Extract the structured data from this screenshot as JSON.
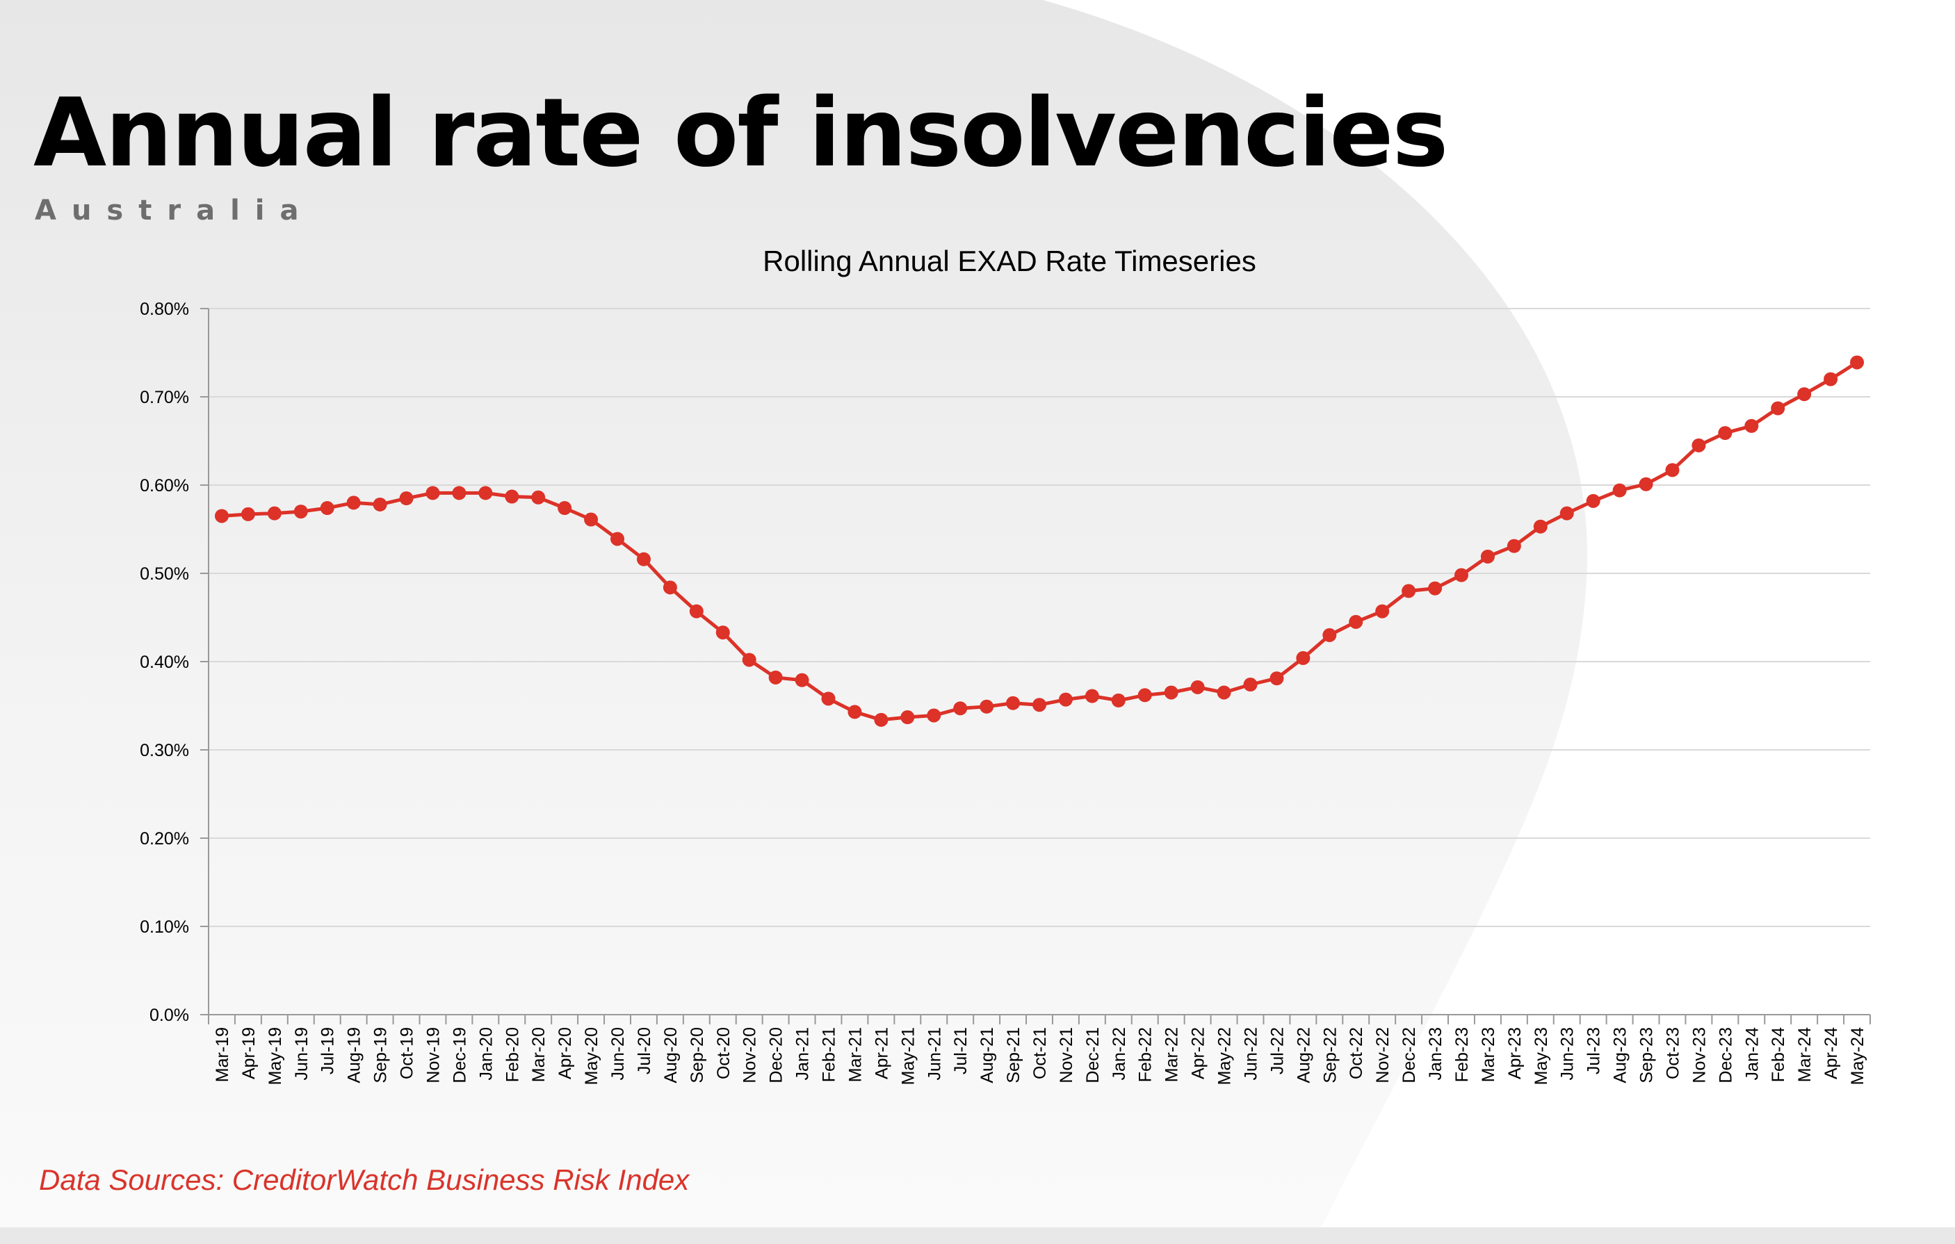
{
  "header": {
    "title": "Annual rate of insolvencies",
    "subtitle": "Australia"
  },
  "footer": {
    "source": "Data Sources: CreditorWatch Business Risk Index"
  },
  "colors": {
    "series": "#dc3228",
    "grid": "#d9d9d9",
    "axis": "#999999",
    "source_text": "#d9342b"
  },
  "chart_data": {
    "type": "line",
    "title": "Rolling Annual EXAD Rate Timeseries",
    "xlabel": "",
    "ylabel": "",
    "ylim": [
      0,
      0.8
    ],
    "y_ticks": [
      "0.0%",
      "0.10%",
      "0.20%",
      "0.30%",
      "0.40%",
      "0.50%",
      "0.60%",
      "0.70%",
      "0.80%"
    ],
    "grid": true,
    "legend": "none",
    "categories": [
      "Mar-19",
      "Apr-19",
      "May-19",
      "Jun-19",
      "Jul-19",
      "Aug-19",
      "Sep-19",
      "Oct-19",
      "Nov-19",
      "Dec-19",
      "Jan-20",
      "Feb-20",
      "Mar-20",
      "Apr-20",
      "May-20",
      "Jun-20",
      "Jul-20",
      "Aug-20",
      "Sep-20",
      "Oct-20",
      "Nov-20",
      "Dec-20",
      "Jan-21",
      "Feb-21",
      "Mar-21",
      "Apr-21",
      "May-21",
      "Jun-21",
      "Jul-21",
      "Aug-21",
      "Sep-21",
      "Oct-21",
      "Nov-21",
      "Dec-21",
      "Jan-22",
      "Feb-22",
      "Mar-22",
      "Apr-22",
      "May-22",
      "Jun-22",
      "Jul-22",
      "Aug-22",
      "Sep-22",
      "Oct-22",
      "Nov-22",
      "Dec-22",
      "Jan-23",
      "Feb-23",
      "Mar-23",
      "Apr-23",
      "May-23",
      "Jun-23",
      "Jul-23",
      "Aug-23",
      "Sep-23",
      "Oct-23",
      "Nov-23",
      "Dec-23",
      "Jan-24",
      "Feb-24",
      "Mar-24",
      "Apr-24",
      "May-24"
    ],
    "series": [
      {
        "values": [
          0.565,
          0.567,
          0.568,
          0.57,
          0.574,
          0.58,
          0.578,
          0.585,
          0.591,
          0.591,
          0.591,
          0.587,
          0.586,
          0.574,
          0.561,
          0.539,
          0.516,
          0.484,
          0.457,
          0.433,
          0.402,
          0.382,
          0.379,
          0.358,
          0.343,
          0.334,
          0.337,
          0.339,
          0.347,
          0.349,
          0.353,
          0.351,
          0.357,
          0.361,
          0.356,
          0.362,
          0.365,
          0.371,
          0.365,
          0.374,
          0.381,
          0.404,
          0.43,
          0.445,
          0.457,
          0.48,
          0.483,
          0.498,
          0.519,
          0.531,
          0.553,
          0.568,
          0.582,
          0.594,
          0.601,
          0.617,
          0.645,
          0.659,
          0.667,
          0.687,
          0.703,
          0.72,
          0.739
        ]
      }
    ]
  }
}
